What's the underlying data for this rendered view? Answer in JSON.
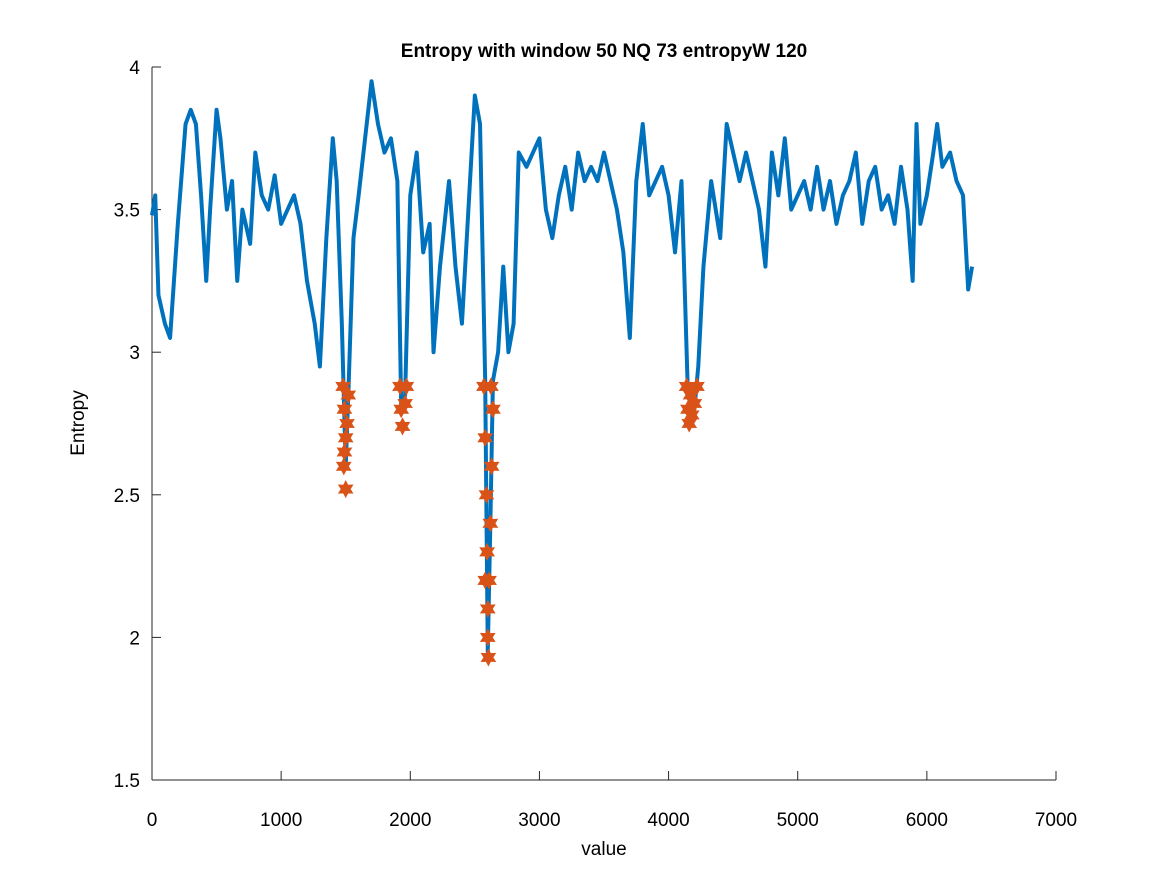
{
  "chart_data": {
    "type": "line",
    "title": "Entropy with window 50  NQ 73  entropyW 120",
    "xlabel": "value",
    "ylabel": "Entropy",
    "xlim": [
      0,
      7000
    ],
    "xticks": [
      0,
      1000,
      2000,
      3000,
      4000,
      5000,
      6000,
      7000
    ],
    "ylim": [
      1.5,
      4
    ],
    "yticks": [
      1.5,
      2,
      2.5,
      3,
      3.5,
      4
    ],
    "series": [
      {
        "style": "line",
        "color": "#0072bd",
        "x": [
          0,
          25,
          50,
          100,
          140,
          200,
          260,
          300,
          340,
          380,
          420,
          450,
          500,
          530,
          580,
          620,
          660,
          700,
          760,
          800,
          850,
          900,
          950,
          1000,
          1050,
          1100,
          1150,
          1200,
          1260,
          1300,
          1350,
          1400,
          1430,
          1470,
          1500,
          1520,
          1560,
          1600,
          1650,
          1700,
          1750,
          1800,
          1850,
          1900,
          1930,
          1960,
          2000,
          2050,
          2100,
          2150,
          2180,
          2230,
          2300,
          2350,
          2400,
          2450,
          2500,
          2540,
          2580,
          2600,
          2620,
          2640,
          2680,
          2720,
          2760,
          2800,
          2840,
          2900,
          2950,
          3000,
          3050,
          3100,
          3150,
          3200,
          3250,
          3300,
          3350,
          3400,
          3450,
          3500,
          3550,
          3600,
          3650,
          3700,
          3750,
          3800,
          3850,
          3900,
          3950,
          4000,
          4050,
          4100,
          4150,
          4200,
          4230,
          4270,
          4330,
          4400,
          4450,
          4500,
          4550,
          4600,
          4650,
          4700,
          4750,
          4800,
          4850,
          4900,
          4950,
          5000,
          5050,
          5100,
          5150,
          5200,
          5250,
          5300,
          5350,
          5400,
          5450,
          5500,
          5550,
          5600,
          5650,
          5700,
          5750,
          5800,
          5850,
          5890,
          5920,
          5950,
          6000,
          6050,
          6080,
          6120,
          6180,
          6230,
          6280,
          6320,
          6350
        ],
        "values": [
          3.48,
          3.55,
          3.2,
          3.1,
          3.05,
          3.45,
          3.8,
          3.85,
          3.8,
          3.55,
          3.25,
          3.5,
          3.85,
          3.75,
          3.5,
          3.6,
          3.25,
          3.5,
          3.38,
          3.7,
          3.55,
          3.5,
          3.62,
          3.45,
          3.5,
          3.55,
          3.45,
          3.25,
          3.1,
          2.95,
          3.4,
          3.75,
          3.6,
          3.1,
          2.6,
          2.85,
          3.4,
          3.55,
          3.75,
          3.95,
          3.8,
          3.7,
          3.75,
          3.6,
          2.8,
          2.85,
          3.55,
          3.7,
          3.35,
          3.45,
          3.0,
          3.3,
          3.6,
          3.3,
          3.1,
          3.5,
          3.9,
          3.8,
          2.9,
          1.95,
          2.4,
          2.9,
          3.0,
          3.3,
          3.0,
          3.1,
          3.7,
          3.65,
          3.7,
          3.75,
          3.5,
          3.4,
          3.55,
          3.65,
          3.5,
          3.7,
          3.6,
          3.65,
          3.6,
          3.7,
          3.6,
          3.5,
          3.35,
          3.05,
          3.6,
          3.8,
          3.55,
          3.6,
          3.65,
          3.55,
          3.35,
          3.6,
          2.85,
          2.8,
          2.95,
          3.3,
          3.6,
          3.4,
          3.8,
          3.7,
          3.6,
          3.7,
          3.6,
          3.5,
          3.3,
          3.7,
          3.55,
          3.75,
          3.5,
          3.55,
          3.6,
          3.5,
          3.65,
          3.5,
          3.6,
          3.45,
          3.55,
          3.6,
          3.7,
          3.45,
          3.6,
          3.65,
          3.5,
          3.55,
          3.45,
          3.65,
          3.5,
          3.25,
          3.8,
          3.45,
          3.55,
          3.7,
          3.8,
          3.65,
          3.7,
          3.6,
          3.55,
          3.22,
          3.3
        ]
      },
      {
        "style": "markers",
        "color": "#d95319",
        "x": [
          1480,
          1490,
          1500,
          1485,
          1500,
          1510,
          1520,
          1490,
          1920,
          1930,
          1940,
          1960,
          1970,
          2570,
          2580,
          2590,
          2595,
          2600,
          2605,
          2610,
          2620,
          2630,
          2640,
          2580,
          2600,
          2625,
          4140,
          4150,
          4160,
          4180,
          4200,
          4220,
          4170
        ],
        "values": [
          2.88,
          2.8,
          2.7,
          2.6,
          2.52,
          2.75,
          2.85,
          2.65,
          2.88,
          2.8,
          2.74,
          2.82,
          2.88,
          2.88,
          2.7,
          2.5,
          2.3,
          2.1,
          1.93,
          2.2,
          2.4,
          2.6,
          2.8,
          2.2,
          2.0,
          2.88,
          2.88,
          2.8,
          2.75,
          2.78,
          2.82,
          2.88,
          2.85
        ]
      }
    ]
  }
}
